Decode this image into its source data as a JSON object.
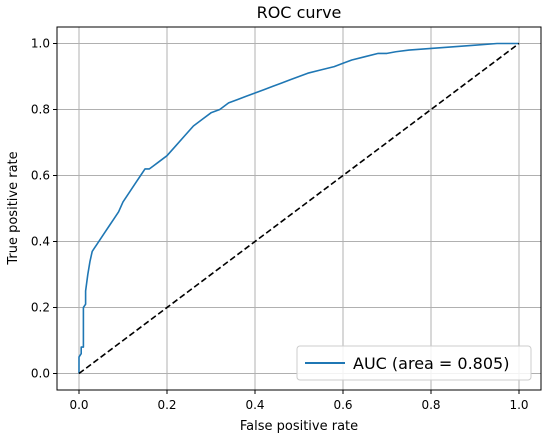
{
  "chart_data": {
    "type": "line",
    "title": "ROC curve",
    "xlabel": "False positive rate",
    "ylabel": "True positive rate",
    "xlim": [
      -0.05,
      1.05
    ],
    "ylim": [
      -0.05,
      1.05
    ],
    "xticks": [
      0.0,
      0.2,
      0.4,
      0.6,
      0.8,
      1.0
    ],
    "yticks": [
      0.0,
      0.2,
      0.4,
      0.6,
      0.8,
      1.0
    ],
    "xtick_labels": [
      "0.0",
      "0.2",
      "0.4",
      "0.6",
      "0.8",
      "1.0"
    ],
    "ytick_labels": [
      "0.0",
      "0.2",
      "0.4",
      "0.6",
      "0.8",
      "1.0"
    ],
    "grid": true,
    "legend_position": "lower-right",
    "series": [
      {
        "name": "AUC (area = 0.805)",
        "color": "#1f77b4",
        "style": "solid",
        "x": [
          0.0,
          0.0,
          0.005,
          0.005,
          0.01,
          0.01,
          0.015,
          0.015,
          0.02,
          0.025,
          0.03,
          0.035,
          0.04,
          0.05,
          0.06,
          0.07,
          0.08,
          0.09,
          0.1,
          0.11,
          0.12,
          0.13,
          0.14,
          0.15,
          0.16,
          0.17,
          0.18,
          0.2,
          0.22,
          0.24,
          0.26,
          0.28,
          0.3,
          0.32,
          0.34,
          0.36,
          0.38,
          0.4,
          0.42,
          0.44,
          0.46,
          0.48,
          0.5,
          0.52,
          0.55,
          0.58,
          0.6,
          0.62,
          0.65,
          0.68,
          0.7,
          0.72,
          0.75,
          0.8,
          0.85,
          0.9,
          0.95,
          1.0
        ],
        "y": [
          0.0,
          0.05,
          0.06,
          0.08,
          0.08,
          0.2,
          0.21,
          0.25,
          0.3,
          0.34,
          0.37,
          0.38,
          0.39,
          0.41,
          0.43,
          0.45,
          0.47,
          0.49,
          0.52,
          0.54,
          0.56,
          0.58,
          0.6,
          0.62,
          0.62,
          0.63,
          0.64,
          0.66,
          0.69,
          0.72,
          0.75,
          0.77,
          0.79,
          0.8,
          0.82,
          0.83,
          0.84,
          0.85,
          0.86,
          0.87,
          0.88,
          0.89,
          0.9,
          0.91,
          0.92,
          0.93,
          0.94,
          0.95,
          0.96,
          0.97,
          0.97,
          0.975,
          0.98,
          0.985,
          0.99,
          0.995,
          1.0,
          1.0
        ]
      },
      {
        "name": "",
        "color": "#000000",
        "style": "dashed",
        "x": [
          0.0,
          1.0
        ],
        "y": [
          0.0,
          1.0
        ]
      }
    ]
  }
}
